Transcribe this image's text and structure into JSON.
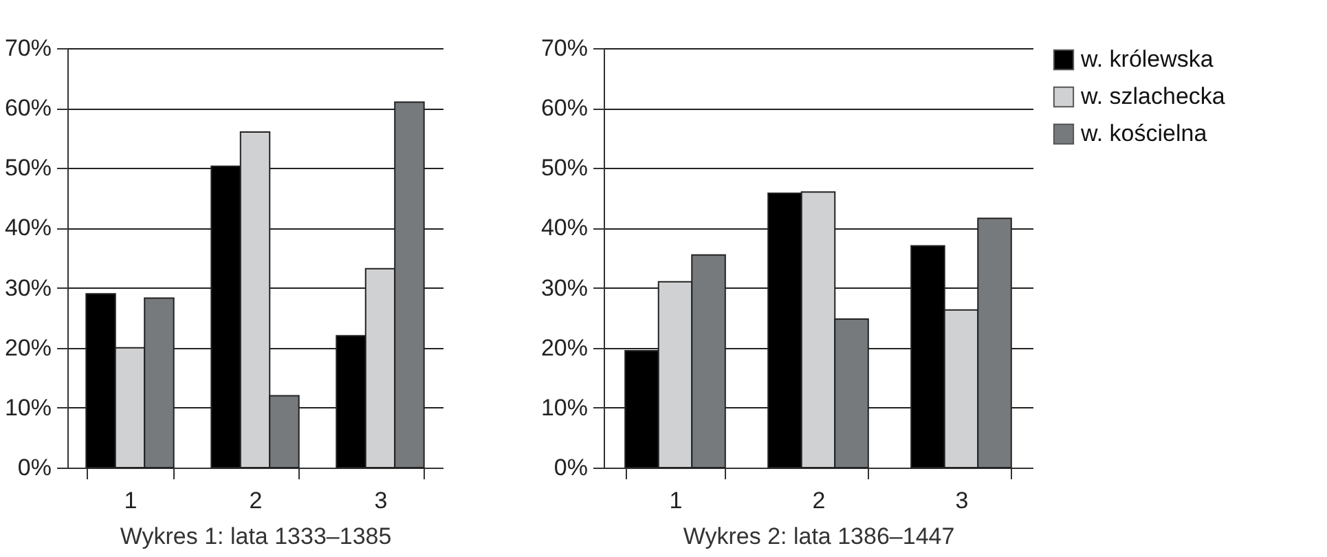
{
  "chart_data": [
    {
      "type": "bar",
      "xlabel": "Wykres 1: lata 1333–1385",
      "categories": [
        "1",
        "2",
        "3"
      ],
      "series": [
        {
          "color": "#000000",
          "values": [
            29,
            50.3,
            22
          ]
        },
        {
          "color": "#d0d1d3",
          "values": [
            20,
            56,
            33.2
          ]
        },
        {
          "color": "#767a7d",
          "values": [
            28.3,
            12,
            61
          ]
        }
      ],
      "ylim": [
        0,
        70
      ],
      "yticks": [
        {
          "value": 0,
          "label": "0%"
        },
        {
          "value": 10,
          "label": "10%"
        },
        {
          "value": 20,
          "label": "20%"
        },
        {
          "value": 30,
          "label": "30%"
        },
        {
          "value": 40,
          "label": "40%"
        },
        {
          "value": 50,
          "label": "50%"
        },
        {
          "value": 60,
          "label": "60%"
        },
        {
          "value": 70,
          "label": "70%"
        }
      ],
      "grid": "y",
      "legend": false
    },
    {
      "type": "bar",
      "xlabel": "Wykres 2: lata 1386–1447",
      "categories": [
        "1",
        "2",
        "3"
      ],
      "series": [
        {
          "name": "w. królewska",
          "color": "#000000",
          "values": [
            19.5,
            45.8,
            37
          ]
        },
        {
          "name": "w. szlachecka",
          "color": "#d0d1d3",
          "values": [
            31,
            46,
            26.3
          ]
        },
        {
          "name": "w. kościelna",
          "color": "#767a7d",
          "values": [
            35.5,
            24.8,
            41.6
          ]
        }
      ],
      "ylim": [
        0,
        70
      ],
      "yticks": [
        {
          "value": 0,
          "label": "0%"
        },
        {
          "value": 10,
          "label": "10%"
        },
        {
          "value": 20,
          "label": "20%"
        },
        {
          "value": 30,
          "label": "30%"
        },
        {
          "value": 40,
          "label": "40%"
        },
        {
          "value": 50,
          "label": "50%"
        },
        {
          "value": 60,
          "label": "60%"
        },
        {
          "value": 70,
          "label": "70%"
        }
      ],
      "grid": "y",
      "legend": "right"
    }
  ]
}
